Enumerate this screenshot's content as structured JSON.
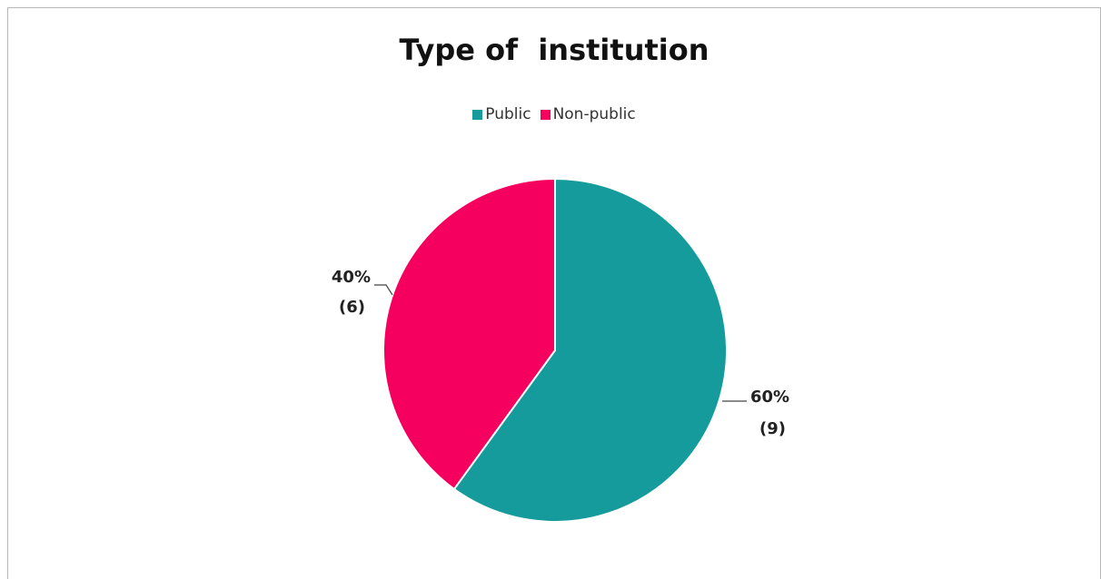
{
  "chart_data": {
    "type": "pie",
    "title": "Type of  institution",
    "legend_position": "top",
    "categories": [
      "Public",
      "Non-public"
    ],
    "values": [
      9,
      6
    ],
    "percent_labels": [
      "60%",
      "40%"
    ],
    "count_labels": [
      "(9)",
      "(6)"
    ],
    "colors": [
      "#159b9b",
      "#f5005e"
    ]
  }
}
